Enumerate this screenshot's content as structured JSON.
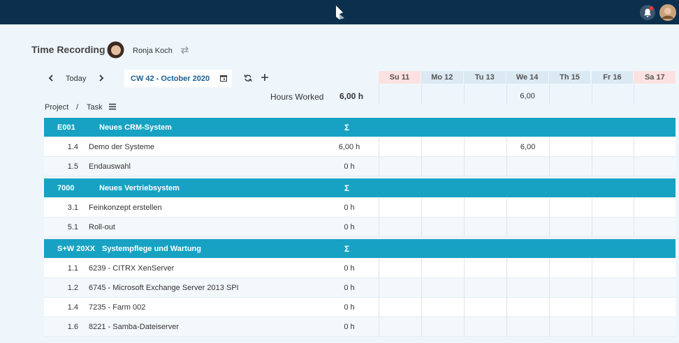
{
  "app": {
    "title": "Time Recording",
    "user": "Ronja Koch",
    "nav": {
      "today": "Today",
      "week": "CW 42 - October 2020"
    },
    "days": [
      {
        "label": "Su 11",
        "weekend": true
      },
      {
        "label": "Mo 12",
        "weekend": false
      },
      {
        "label": "Tu 13",
        "weekend": false
      },
      {
        "label": "We 14",
        "weekend": false
      },
      {
        "label": "Th 15",
        "weekend": false
      },
      {
        "label": "Fr 16",
        "weekend": false
      },
      {
        "label": "Sa 17",
        "weekend": true
      }
    ],
    "summary": {
      "label": "Hours Worked",
      "total": "6,00 h",
      "per_day": [
        null,
        null,
        null,
        "6,00",
        null,
        null,
        null
      ]
    },
    "columns": {
      "project": "Project",
      "separator": "/",
      "task": "Task"
    },
    "sum_symbol": "Σ",
    "groups": [
      {
        "code": "E001",
        "name": "Neues CRM-System",
        "tasks": [
          {
            "id": "1.4",
            "name": "Demo der Systeme",
            "hours": "6,00 h",
            "per_day": [
              null,
              null,
              null,
              "6,00",
              null,
              null,
              null
            ]
          },
          {
            "id": "1.5",
            "name": "Endauswahl",
            "hours": "0 h",
            "per_day": [
              null,
              null,
              null,
              null,
              null,
              null,
              null
            ]
          }
        ]
      },
      {
        "code": "7000",
        "name": "Neues Vertriebsystem",
        "tasks": [
          {
            "id": "3.1",
            "name": "Feinkonzept erstellen",
            "hours": "0 h",
            "per_day": [
              null,
              null,
              null,
              null,
              null,
              null,
              null
            ]
          },
          {
            "id": "5.1",
            "name": "Roll-out",
            "hours": "0 h",
            "per_day": [
              null,
              null,
              null,
              null,
              null,
              null,
              null
            ]
          }
        ]
      },
      {
        "code": "S+W 20XX",
        "name": "Systempflege und Wartung",
        "tasks": [
          {
            "id": "1.1",
            "name": "6239 - CITRX XenServer",
            "hours": "0 h",
            "per_day": [
              null,
              null,
              null,
              null,
              null,
              null,
              null
            ]
          },
          {
            "id": "1.2",
            "name": "6745 - Microsoft Exchange Server 2013 SPI",
            "hours": "0 h",
            "per_day": [
              null,
              null,
              null,
              null,
              null,
              null,
              null
            ]
          },
          {
            "id": "1.4",
            "name": "7235 - Farm 002",
            "hours": "0 h",
            "per_day": [
              null,
              null,
              null,
              null,
              null,
              null,
              null
            ]
          },
          {
            "id": "1.6",
            "name": "8221 - Samba-Dateiserver",
            "hours": "0 h",
            "per_day": [
              null,
              null,
              null,
              null,
              null,
              null,
              null
            ]
          }
        ]
      }
    ]
  }
}
